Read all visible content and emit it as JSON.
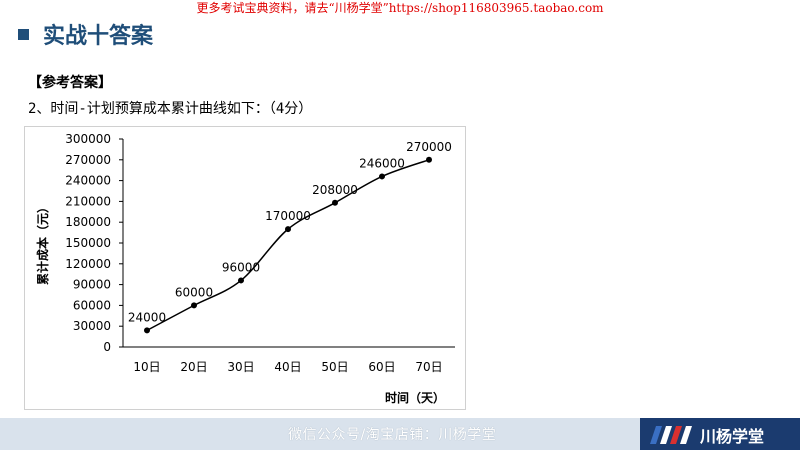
{
  "banner": "更多考试宝典资料，请去“川杨学堂”https://shop116803965.taobao.com",
  "title": "实战十答案",
  "answer_label": "【参考答案】",
  "question": "2、时间-计划预算成本累计曲线如下：（4分）",
  "footer": {
    "text": "微信公众号/淘宝店铺：川杨学堂",
    "logo_text": "川杨学堂"
  },
  "colors": {
    "title": "#1f4e79",
    "banner": "#e00000",
    "line": "#000000"
  },
  "chart_data": {
    "type": "line",
    "categories": [
      "10日",
      "20日",
      "30日",
      "40日",
      "50日",
      "60日",
      "70日"
    ],
    "values": [
      24000,
      60000,
      96000,
      170000,
      208000,
      246000,
      270000
    ],
    "data_labels": [
      "24000",
      "60000",
      "96000",
      "170000",
      "208000",
      "246000",
      "270000"
    ],
    "ylabel": "累计成本（元）",
    "xlabel": "时间（天）",
    "ylim": [
      0,
      300000
    ],
    "yticks": [
      0,
      30000,
      60000,
      90000,
      120000,
      150000,
      180000,
      210000,
      240000,
      270000,
      300000
    ],
    "grid": false,
    "smooth": true
  }
}
